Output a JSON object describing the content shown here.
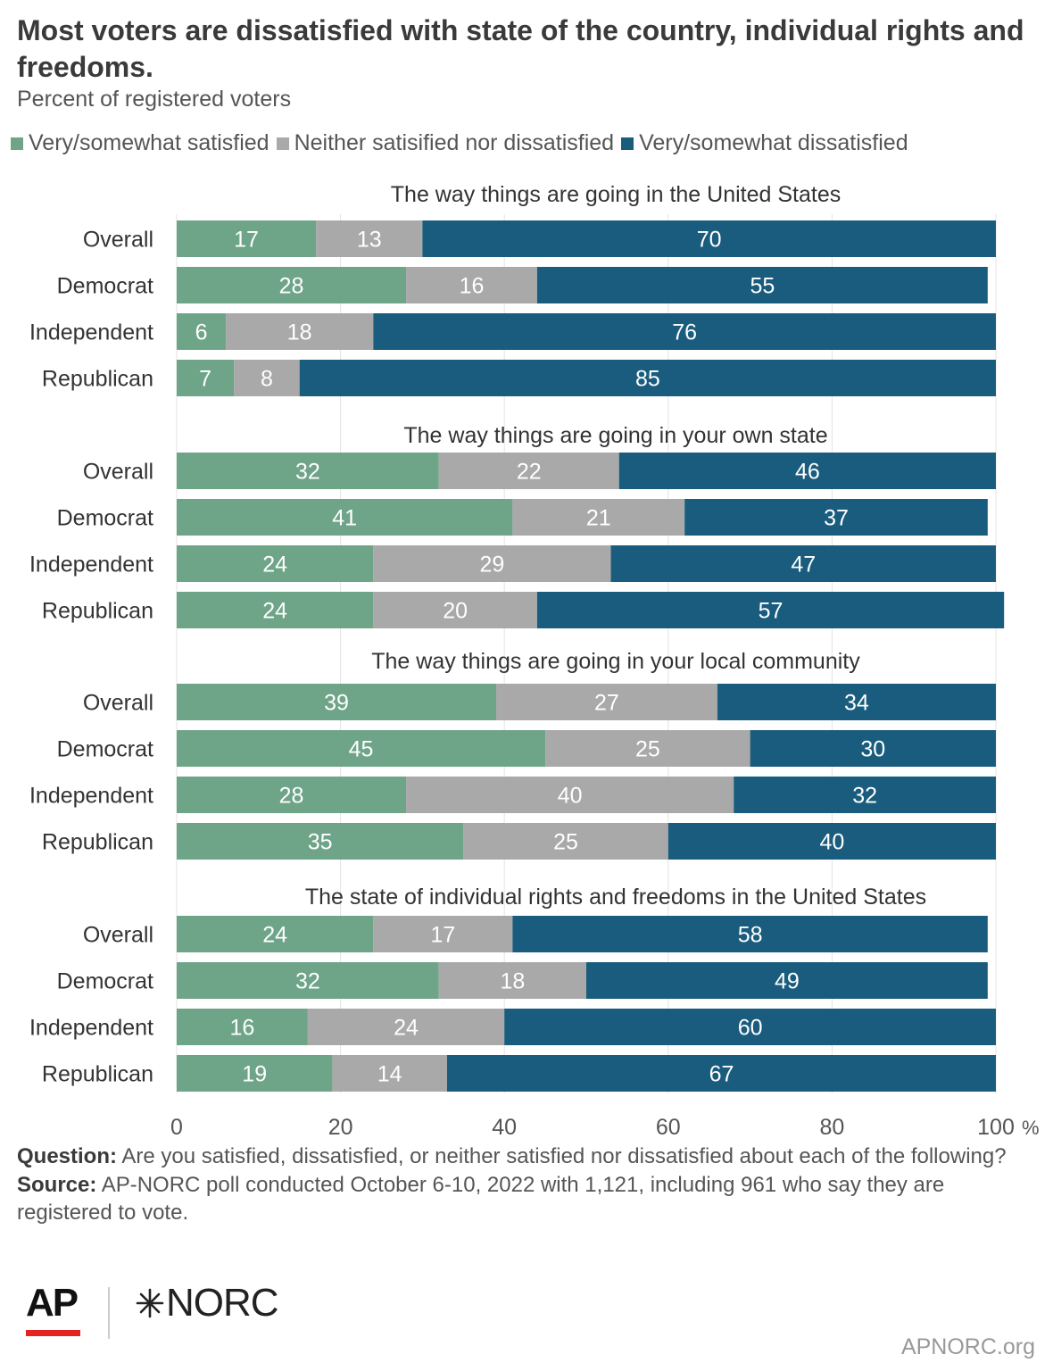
{
  "title": "Most voters are dissatisfied with state of the country, individual rights and freedoms.",
  "subtitle": "Percent of registered voters",
  "colors": {
    "satisfied": "#6ea487",
    "neither": "#a9a9a9",
    "dissatisfied": "#1a5c7e"
  },
  "chart_data": {
    "type": "bar",
    "orientation": "horizontal-stacked",
    "series": [
      {
        "name": "Very/somewhat satisfied"
      },
      {
        "name": "Neither satisified nor dissatisfied"
      },
      {
        "name": "Very/somewhat dissatisfied"
      }
    ],
    "categories": [
      "Overall",
      "Democrat",
      "Independent",
      "Republican"
    ],
    "groups": [
      {
        "title": "The way things are going in the United States",
        "rows": [
          {
            "label": "Overall",
            "values": [
              17,
              13,
              70
            ]
          },
          {
            "label": "Democrat",
            "values": [
              28,
              16,
              55
            ]
          },
          {
            "label": "Independent",
            "values": [
              6,
              18,
              76
            ]
          },
          {
            "label": "Republican",
            "values": [
              7,
              8,
              85
            ]
          }
        ]
      },
      {
        "title": "The way things are going in your own state",
        "rows": [
          {
            "label": "Overall",
            "values": [
              32,
              22,
              46
            ]
          },
          {
            "label": "Democrat",
            "values": [
              41,
              21,
              37
            ]
          },
          {
            "label": "Independent",
            "values": [
              24,
              29,
              47
            ]
          },
          {
            "label": "Republican",
            "values": [
              24,
              20,
              57
            ]
          }
        ]
      },
      {
        "title": "The way things are going in your local community",
        "rows": [
          {
            "label": "Overall",
            "values": [
              39,
              27,
              34
            ]
          },
          {
            "label": "Democrat",
            "values": [
              45,
              25,
              30
            ]
          },
          {
            "label": "Independent",
            "values": [
              28,
              40,
              32
            ]
          },
          {
            "label": "Republican",
            "values": [
              35,
              25,
              40
            ]
          }
        ]
      },
      {
        "title": "The state of individual rights and freedoms in the United States",
        "rows": [
          {
            "label": "Overall",
            "values": [
              24,
              17,
              58
            ]
          },
          {
            "label": "Democrat",
            "values": [
              32,
              18,
              49
            ]
          },
          {
            "label": "Independent",
            "values": [
              16,
              24,
              60
            ]
          },
          {
            "label": "Republican",
            "values": [
              19,
              14,
              67
            ]
          }
        ]
      }
    ],
    "x_ticks": [
      "0",
      "20",
      "40",
      "60",
      "80",
      "100"
    ],
    "x_unit": "%",
    "xlim": [
      0,
      100
    ],
    "grid": true,
    "legend_position": "top"
  },
  "notes": {
    "question_label": "Question:",
    "question_text": "Are you satisfied, dissatisfied, or neither satisfied nor dissatisfied about each of the following?",
    "source_label": "Source:",
    "source_text": "AP-NORC poll conducted October 6-10, 2022 with 1,121, including 961 who say they are registered to vote."
  },
  "logos": {
    "ap": "AP",
    "norc": "NORC"
  },
  "site": "APNORC.org"
}
